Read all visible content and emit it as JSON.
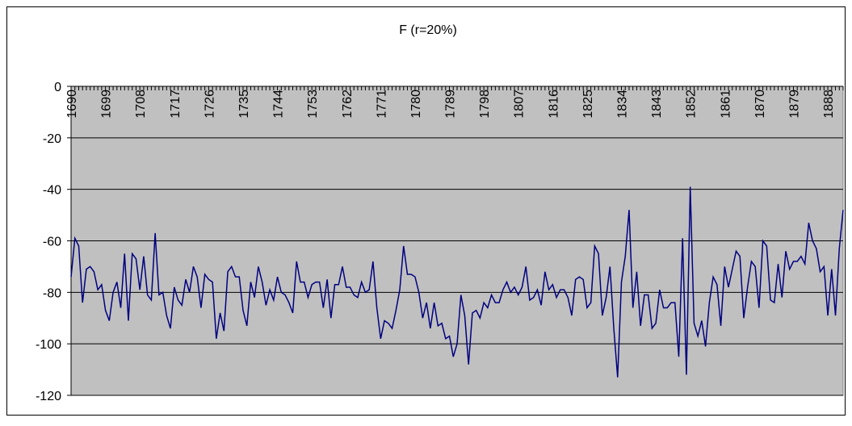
{
  "chart_data": {
    "type": "line",
    "title": "F (r=20%)",
    "categories": [
      "1690",
      null,
      null,
      null,
      null,
      null,
      null,
      null,
      null,
      "1699",
      null,
      null,
      null,
      null,
      null,
      null,
      null,
      null,
      "1708",
      null,
      null,
      null,
      null,
      null,
      null,
      null,
      null,
      "1717",
      null,
      null,
      null,
      null,
      null,
      null,
      null,
      null,
      "1726",
      null,
      null,
      null,
      null,
      null,
      null,
      null,
      null,
      "1735",
      null,
      null,
      null,
      null,
      null,
      null,
      null,
      null,
      "1744",
      null,
      null,
      null,
      null,
      null,
      null,
      null,
      null,
      "1753",
      null,
      null,
      null,
      null,
      null,
      null,
      null,
      null,
      "1762",
      null,
      null,
      null,
      null,
      null,
      null,
      null,
      null,
      "1771",
      null,
      null,
      null,
      null,
      null,
      null,
      null,
      null,
      "1780",
      null,
      null,
      null,
      null,
      null,
      null,
      null,
      null,
      "1789",
      null,
      null,
      null,
      null,
      null,
      null,
      null,
      null,
      "1798",
      null,
      null,
      null,
      null,
      null,
      null,
      null,
      null,
      "1807",
      null,
      null,
      null,
      null,
      null,
      null,
      null,
      null,
      "1816",
      null,
      null,
      null,
      null,
      null,
      null,
      null,
      null,
      "1825",
      null,
      null,
      null,
      null,
      null,
      null,
      null,
      null,
      "1834",
      null,
      null,
      null,
      null,
      null,
      null,
      null,
      null,
      "1843",
      null,
      null,
      null,
      null,
      null,
      null,
      null,
      null,
      "1852",
      null,
      null,
      null,
      null,
      null,
      null,
      null,
      null,
      "1861",
      null,
      null,
      null,
      null,
      null,
      null,
      null,
      null,
      "1870",
      null,
      null,
      null,
      null,
      null,
      null,
      null,
      null,
      "1879",
      null,
      null,
      null,
      null,
      null,
      null,
      null,
      null,
      "1888",
      null,
      null,
      null,
      null
    ],
    "values": [
      -74,
      -59,
      -62,
      -84,
      -71,
      -70,
      -72,
      -79,
      -77,
      -87,
      -91,
      -80,
      -76,
      -86,
      -65,
      -91,
      -65,
      -67,
      -79,
      -66,
      -81,
      -83,
      -57,
      -81,
      -80,
      -89,
      -94,
      -78,
      -83,
      -85,
      -75,
      -80,
      -70,
      -74,
      -86,
      -73,
      -75,
      -76,
      -98,
      -88,
      -95,
      -72,
      -70,
      -74,
      -74,
      -87,
      -93,
      -76,
      -82,
      -70,
      -76,
      -85,
      -79,
      -83,
      -74,
      -80,
      -81,
      -84,
      -88,
      -68,
      -76,
      -76,
      -82,
      -77,
      -76,
      -76,
      -86,
      -75,
      -90,
      -77,
      -77,
      -70,
      -78,
      -78,
      -81,
      -82,
      -76,
      -80,
      -79,
      -68,
      -86,
      -98,
      -91,
      -92,
      -94,
      -87,
      -79,
      -62,
      -73,
      -73,
      -74,
      -80,
      -90,
      -84,
      -94,
      -84,
      -93,
      -92,
      -98,
      -97,
      -105,
      -100,
      -81,
      -89,
      -108,
      -88,
      -87,
      -90,
      -84,
      -86,
      -81,
      -84,
      -84,
      -79,
      -76,
      -80,
      -78,
      -81,
      -78,
      -70,
      -83,
      -82,
      -79,
      -85,
      -72,
      -79,
      -77,
      -82,
      -79,
      -79,
      -82,
      -89,
      -75,
      -74,
      -75,
      -86,
      -84,
      -62,
      -65,
      -89,
      -82,
      -70,
      -94,
      -113,
      -76,
      -66,
      -48,
      -86,
      -72,
      -93,
      -81,
      -81,
      -94,
      -92,
      -79,
      -86,
      -86,
      -84,
      -84,
      -105,
      -59,
      -112,
      -39,
      -92,
      -97,
      -91,
      -101,
      -84,
      -74,
      -77,
      -93,
      -70,
      -78,
      -71,
      -64,
      -66,
      -90,
      -78,
      -68,
      -70,
      -86,
      -60,
      -62,
      -83,
      -84,
      -69,
      -82,
      -64,
      -71,
      -68,
      -68,
      -66,
      -69,
      -53,
      -60,
      -63,
      -72,
      -70,
      -89,
      -71,
      -89,
      -63,
      -48
    ],
    "color": "#000080",
    "plot_background": "#c0c0c0",
    "ylim": [
      -120,
      0
    ],
    "yticks": [
      0,
      -20,
      -40,
      -60,
      -80,
      -100,
      -120
    ],
    "grid": true
  }
}
